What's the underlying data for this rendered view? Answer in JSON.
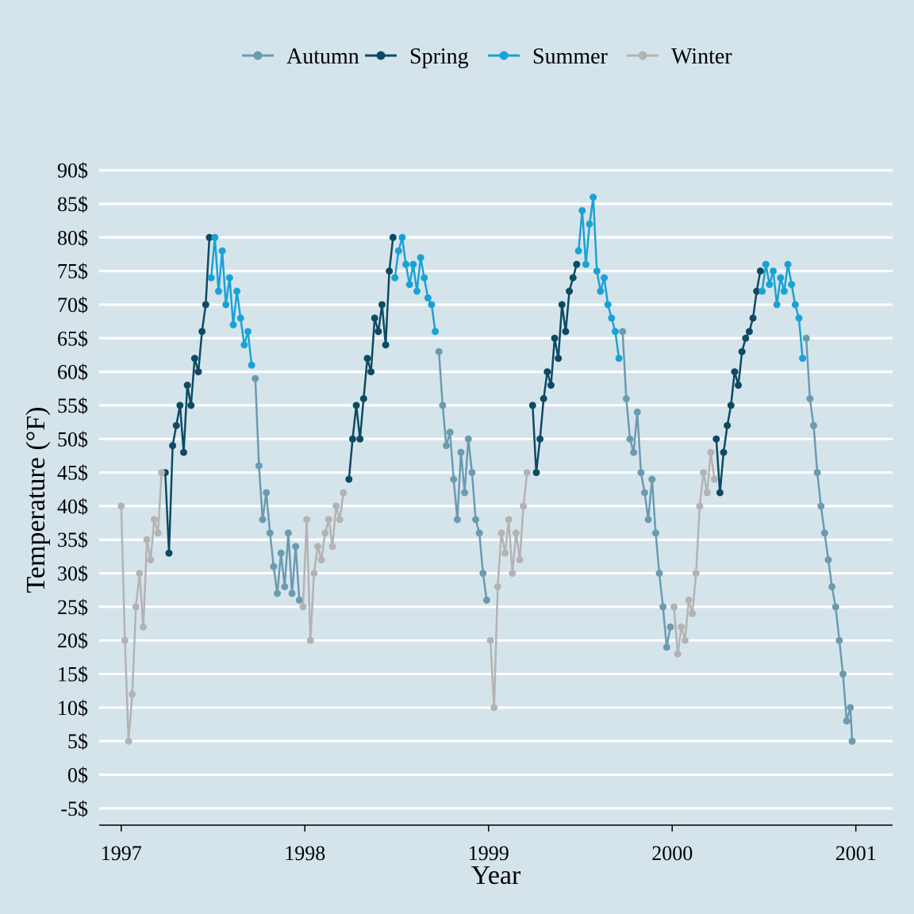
{
  "chart_data": {
    "type": "line",
    "xlabel": "Year",
    "ylabel": "Temperature (°F)",
    "xlim": [
      1996.88,
      2001.2
    ],
    "ylim": [
      -7.5,
      100
    ],
    "x_ticks": [
      1997,
      1998,
      1999,
      2000,
      2001
    ],
    "x_tick_labels": [
      "1997",
      "1998",
      "1999",
      "2000",
      "2001"
    ],
    "y_ticks": [
      -5,
      0,
      5,
      10,
      15,
      20,
      25,
      30,
      35,
      40,
      45,
      50,
      55,
      60,
      65,
      70,
      75,
      80,
      85,
      90
    ],
    "y_tick_labels": [
      "-5$",
      "0$",
      "5$",
      "10$",
      "15$",
      "20$",
      "25$",
      "30$",
      "35$",
      "40$",
      "45$",
      "50$",
      "55$",
      "60$",
      "65$",
      "70$",
      "75$",
      "80$",
      "85$",
      "90$"
    ],
    "grid": "horizontal",
    "legend_position": "top",
    "markers": "points",
    "series": [
      {
        "name": "Autumn",
        "color": "#6a9bb0",
        "segments": [
          {
            "x": [
              1997.73,
              1997.75,
              1997.77,
              1997.79,
              1997.81,
              1997.83,
              1997.85,
              1997.87,
              1997.89,
              1997.91,
              1997.93,
              1997.95,
              1997.97
            ],
            "y": [
              59,
              46,
              38,
              42,
              36,
              31,
              27,
              33,
              28,
              36,
              27,
              34,
              26
            ]
          },
          {
            "x": [
              1998.73,
              1998.75,
              1998.77,
              1998.79,
              1998.81,
              1998.83,
              1998.85,
              1998.87,
              1998.89,
              1998.91,
              1998.93,
              1998.95,
              1998.97,
              1998.99
            ],
            "y": [
              63,
              55,
              49,
              51,
              44,
              38,
              48,
              42,
              50,
              45,
              38,
              36,
              30,
              26
            ]
          },
          {
            "x": [
              1999.73,
              1999.75,
              1999.77,
              1999.79,
              1999.81,
              1999.83,
              1999.85,
              1999.87,
              1999.89,
              1999.91,
              1999.93,
              1999.95,
              1999.97,
              1999.99
            ],
            "y": [
              66,
              56,
              50,
              48,
              54,
              45,
              42,
              38,
              44,
              36,
              30,
              25,
              19,
              22
            ]
          },
          {
            "x": [
              2000.73,
              2000.75,
              2000.77,
              2000.79,
              2000.81,
              2000.83,
              2000.85,
              2000.87,
              2000.89,
              2000.91,
              2000.93,
              2000.95,
              2000.97,
              2000.98
            ],
            "y": [
              65,
              56,
              52,
              45,
              40,
              36,
              32,
              28,
              25,
              20,
              15,
              8,
              10,
              5
            ]
          }
        ]
      },
      {
        "name": "Spring",
        "color": "#0d4a63",
        "segments": [
          {
            "x": [
              1997.24,
              1997.26,
              1997.28,
              1997.3,
              1997.32,
              1997.34,
              1997.36,
              1997.38,
              1997.4,
              1997.42,
              1997.44,
              1997.46,
              1997.48
            ],
            "y": [
              45,
              33,
              49,
              52,
              55,
              48,
              58,
              55,
              62,
              60,
              66,
              70,
              80
            ]
          },
          {
            "x": [
              1998.24,
              1998.26,
              1998.28,
              1998.3,
              1998.32,
              1998.34,
              1998.36,
              1998.38,
              1998.4,
              1998.42,
              1998.44,
              1998.46,
              1998.48
            ],
            "y": [
              44,
              50,
              55,
              50,
              56,
              62,
              60,
              68,
              66,
              70,
              64,
              75,
              80
            ]
          },
          {
            "x": [
              1999.24,
              1999.26,
              1999.28,
              1999.3,
              1999.32,
              1999.34,
              1999.36,
              1999.38,
              1999.4,
              1999.42,
              1999.44,
              1999.46,
              1999.48
            ],
            "y": [
              55,
              45,
              50,
              56,
              60,
              58,
              65,
              62,
              70,
              66,
              72,
              74,
              76
            ]
          },
          {
            "x": [
              2000.24,
              2000.26,
              2000.28,
              2000.3,
              2000.32,
              2000.34,
              2000.36,
              2000.38,
              2000.4,
              2000.42,
              2000.44,
              2000.46,
              2000.48
            ],
            "y": [
              50,
              42,
              48,
              52,
              55,
              60,
              58,
              63,
              65,
              66,
              68,
              72,
              75
            ]
          }
        ]
      },
      {
        "name": "Summer",
        "color": "#1aa2d6",
        "segments": [
          {
            "x": [
              1997.49,
              1997.51,
              1997.53,
              1997.55,
              1997.57,
              1997.59,
              1997.61,
              1997.63,
              1997.65,
              1997.67,
              1997.69,
              1997.71
            ],
            "y": [
              74,
              80,
              72,
              78,
              70,
              74,
              67,
              72,
              68,
              64,
              66,
              61
            ]
          },
          {
            "x": [
              1998.49,
              1998.51,
              1998.53,
              1998.55,
              1998.57,
              1998.59,
              1998.61,
              1998.63,
              1998.65,
              1998.67,
              1998.69,
              1998.71
            ],
            "y": [
              74,
              78,
              80,
              76,
              73,
              76,
              72,
              77,
              74,
              71,
              70,
              66
            ]
          },
          {
            "x": [
              1999.49,
              1999.51,
              1999.53,
              1999.55,
              1999.57,
              1999.59,
              1999.61,
              1999.63,
              1999.65,
              1999.67,
              1999.69,
              1999.71
            ],
            "y": [
              78,
              84,
              76,
              82,
              86,
              75,
              72,
              74,
              70,
              68,
              66,
              62
            ]
          },
          {
            "x": [
              2000.49,
              2000.51,
              2000.53,
              2000.55,
              2000.57,
              2000.59,
              2000.61,
              2000.63,
              2000.65,
              2000.67,
              2000.69,
              2000.71
            ],
            "y": [
              72,
              76,
              73,
              75,
              70,
              74,
              72,
              76,
              73,
              70,
              68,
              62
            ]
          }
        ]
      },
      {
        "name": "Winter",
        "color": "#b3b3b3",
        "segments": [
          {
            "x": [
              1997.0,
              1997.02,
              1997.04,
              1997.06,
              1997.08,
              1997.1,
              1997.12,
              1997.14,
              1997.16,
              1997.18,
              1997.2,
              1997.22
            ],
            "y": [
              40,
              20,
              5,
              12,
              25,
              30,
              22,
              35,
              32,
              38,
              36,
              45
            ]
          },
          {
            "x": [
              1997.99,
              1998.01,
              1998.03,
              1998.05,
              1998.07,
              1998.09,
              1998.11,
              1998.13,
              1998.15,
              1998.17,
              1998.19,
              1998.21
            ],
            "y": [
              25,
              38,
              20,
              30,
              34,
              32,
              36,
              38,
              34,
              40,
              38,
              42
            ]
          },
          {
            "x": [
              1999.01,
              1999.03,
              1999.05,
              1999.07,
              1999.09,
              1999.11,
              1999.13,
              1999.15,
              1999.17,
              1999.19,
              1999.21
            ],
            "y": [
              20,
              10,
              28,
              36,
              33,
              38,
              30,
              36,
              32,
              40,
              45
            ]
          },
          {
            "x": [
              2000.01,
              2000.03,
              2000.05,
              2000.07,
              2000.09,
              2000.11,
              2000.13,
              2000.15,
              2000.17,
              2000.19,
              2000.21,
              2000.23
            ],
            "y": [
              25,
              18,
              22,
              20,
              26,
              24,
              30,
              40,
              45,
              42,
              48,
              44
            ]
          }
        ]
      }
    ]
  }
}
